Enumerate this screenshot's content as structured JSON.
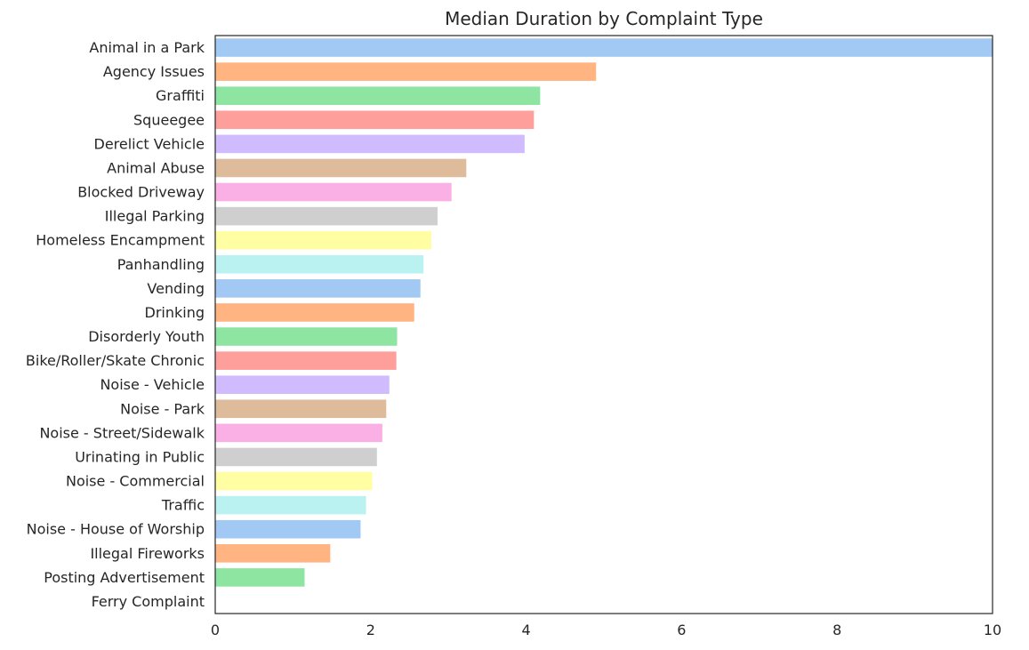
{
  "chart_data": {
    "type": "bar",
    "orientation": "horizontal",
    "title": "Median Duration by Complaint Type",
    "xlabel": "",
    "ylabel": "",
    "xlim": [
      0,
      10
    ],
    "xticks": [
      "0",
      "2",
      "4",
      "6",
      "8",
      "10"
    ],
    "grid": false,
    "categories": [
      "Animal in a Park",
      "Agency Issues",
      "Graffiti",
      "Squeegee",
      "Derelict Vehicle",
      "Animal Abuse",
      "Blocked Driveway",
      "Illegal Parking",
      "Homeless Encampment",
      "Panhandling",
      "Vending",
      "Drinking",
      "Disorderly Youth",
      "Bike/Roller/Skate Chronic",
      "Noise - Vehicle",
      "Noise - Park",
      "Noise - Street/Sidewalk",
      "Urinating in Public",
      "Noise - Commercial",
      "Traffic",
      "Noise - House of Worship",
      "Illegal Fireworks",
      "Posting Advertisement",
      "Ferry Complaint"
    ],
    "values": [
      10.0,
      4.9,
      4.18,
      4.1,
      3.98,
      3.23,
      3.04,
      2.86,
      2.78,
      2.68,
      2.64,
      2.56,
      2.34,
      2.33,
      2.24,
      2.2,
      2.15,
      2.08,
      2.02,
      1.94,
      1.87,
      1.48,
      1.15,
      0
    ],
    "palette": [
      "#a1c9f4",
      "#ffb482",
      "#8de5a1",
      "#ff9f9b",
      "#d0bbff",
      "#debb9b",
      "#fab0e4",
      "#cfcfcf",
      "#fffea3",
      "#b9f2f0"
    ]
  }
}
